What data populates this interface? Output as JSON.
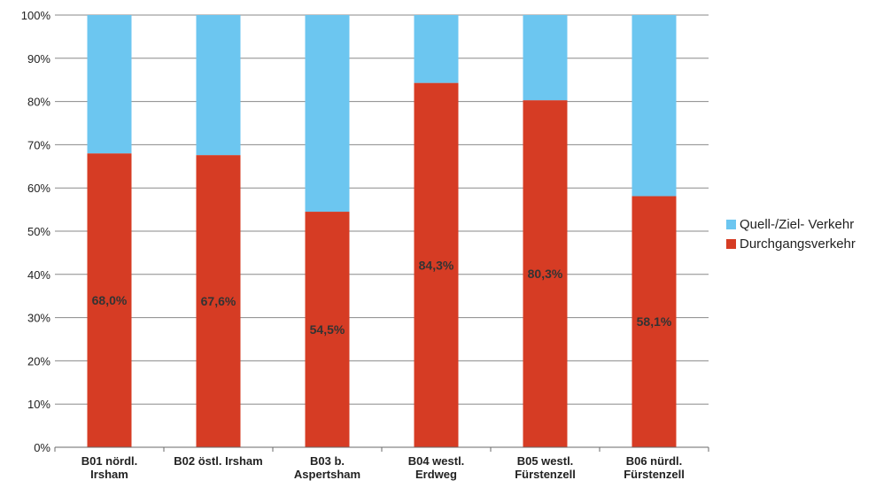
{
  "chart_data": {
    "type": "bar",
    "stacked": true,
    "categories": [
      [
        "B01 nördl.",
        "Irsham"
      ],
      [
        "B02 östl. Irsham"
      ],
      [
        "B03 b.",
        "Aspertsham"
      ],
      [
        "B04 westl.",
        "Erdweg"
      ],
      [
        "B05 westl.",
        "Fürstenzell"
      ],
      [
        "B06 nürdl.",
        "Fürstenzell"
      ]
    ],
    "series": [
      {
        "name": "Durchgangsverkehr",
        "color": "#D63C24",
        "values": [
          68.0,
          67.6,
          54.5,
          84.3,
          80.3,
          58.1
        ],
        "labels": [
          "68,0%",
          "67,6%",
          "54,5%",
          "84,3%",
          "80,3%",
          "58,1%"
        ]
      },
      {
        "name": "Quell-/Ziel- Verkehr",
        "color": "#6CC6F0",
        "values": [
          32.0,
          32.4,
          45.5,
          15.7,
          19.7,
          41.9
        ]
      }
    ],
    "legend_order": [
      1,
      0
    ],
    "legend_position": "right",
    "ylim": [
      0,
      100
    ],
    "yticks": [
      0,
      10,
      20,
      30,
      40,
      50,
      60,
      70,
      80,
      90,
      100
    ],
    "ytick_labels": [
      "0%",
      "10%",
      "20%",
      "30%",
      "40%",
      "50%",
      "60%",
      "70%",
      "80%",
      "90%",
      "100%"
    ],
    "grid": true,
    "title": "",
    "xlabel": "",
    "ylabel": ""
  }
}
